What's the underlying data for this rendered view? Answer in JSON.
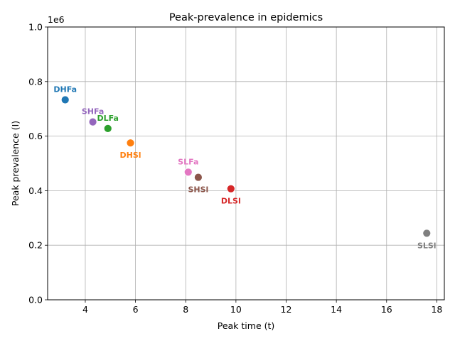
{
  "chart_data": {
    "type": "scatter",
    "title": "Peak-prevalence in epidemics",
    "xlabel": "Peak time (t)",
    "ylabel": "Peak prevalence (I)",
    "y_offset_label": "1e6",
    "xlim": [
      2.5,
      18.3
    ],
    "ylim": [
      0,
      1000000
    ],
    "x_ticks": [
      4,
      6,
      8,
      10,
      12,
      14,
      16,
      18
    ],
    "x_tick_labels": [
      "4",
      "6",
      "8",
      "10",
      "12",
      "14",
      "16",
      "18"
    ],
    "y_ticks": [
      0,
      200000,
      400000,
      600000,
      800000,
      1000000
    ],
    "y_tick_labels": [
      "0.0",
      "0.2",
      "0.4",
      "0.6",
      "0.8",
      "1.0"
    ],
    "grid": true,
    "points": [
      {
        "label": "DHFa",
        "x": 3.2,
        "y": 733000,
        "color": "#1f77b4",
        "label_pos": "above"
      },
      {
        "label": "DHSl",
        "x": 5.8,
        "y": 575000,
        "color": "#ff7f0e",
        "label_pos": "below"
      },
      {
        "label": "DLFa",
        "x": 4.9,
        "y": 628000,
        "color": "#2ca02c",
        "label_pos": "above"
      },
      {
        "label": "DLSl",
        "x": 9.8,
        "y": 407000,
        "color": "#d62728",
        "label_pos": "below"
      },
      {
        "label": "SHFa",
        "x": 4.3,
        "y": 652000,
        "color": "#9467bd",
        "label_pos": "above"
      },
      {
        "label": "SHSl",
        "x": 8.5,
        "y": 449000,
        "color": "#8c564b",
        "label_pos": "below"
      },
      {
        "label": "SLFa",
        "x": 8.1,
        "y": 468000,
        "color": "#e377c2",
        "label_pos": "above"
      },
      {
        "label": "SLSl",
        "x": 17.6,
        "y": 244000,
        "color": "#7f7f7f",
        "label_pos": "below"
      }
    ]
  }
}
